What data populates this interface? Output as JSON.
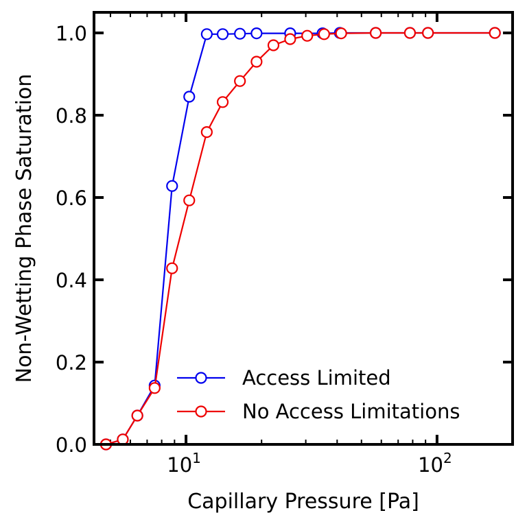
{
  "chart_data": {
    "type": "line",
    "xlabel": "Capillary Pressure [Pa]",
    "ylabel": "Non-Wetting Phase Saturation",
    "xscale": "log",
    "xlim": [
      4.3,
      200
    ],
    "ylim": [
      0.0,
      1.05
    ],
    "x_ticks": [
      {
        "value": 10,
        "base": "10",
        "exp": "1"
      },
      {
        "value": 100,
        "base": "10",
        "exp": "2"
      }
    ],
    "y_ticks": [
      {
        "value": 0.0,
        "label": "0.0"
      },
      {
        "value": 0.2,
        "label": "0.2"
      },
      {
        "value": 0.4,
        "label": "0.4"
      },
      {
        "value": 0.6,
        "label": "0.6"
      },
      {
        "value": 0.8,
        "label": "0.8"
      },
      {
        "value": 1.0,
        "label": "1.0"
      }
    ],
    "grid": false,
    "legend_position": "lower-right",
    "series": [
      {
        "name": "Access Limited",
        "color": "#0000ee",
        "marker": "open-circle",
        "x": [
          4.8,
          5.6,
          6.4,
          7.5,
          8.8,
          10.3,
          12.1,
          14.0,
          16.4,
          19.1,
          26.0,
          35.0,
          41.0,
          57.0,
          78.0,
          92.0,
          170.0
        ],
        "y": [
          0.0,
          0.012,
          0.07,
          0.143,
          0.628,
          0.845,
          0.997,
          0.997,
          0.998,
          0.999,
          0.999,
          0.999,
          1.0,
          1.0,
          1.0,
          1.0,
          1.0
        ]
      },
      {
        "name": "No Access Limitations",
        "color": "#ee0000",
        "marker": "open-circle",
        "x": [
          4.8,
          5.6,
          6.4,
          7.5,
          8.8,
          10.3,
          12.1,
          14.0,
          16.4,
          19.1,
          22.3,
          26.0,
          30.4,
          35.5,
          41.5,
          57.0,
          78.0,
          92.0,
          170.0
        ],
        "y": [
          0.0,
          0.012,
          0.07,
          0.137,
          0.428,
          0.593,
          0.759,
          0.832,
          0.883,
          0.93,
          0.97,
          0.985,
          0.993,
          0.997,
          0.999,
          1.0,
          1.0,
          1.0,
          1.0
        ]
      }
    ]
  }
}
